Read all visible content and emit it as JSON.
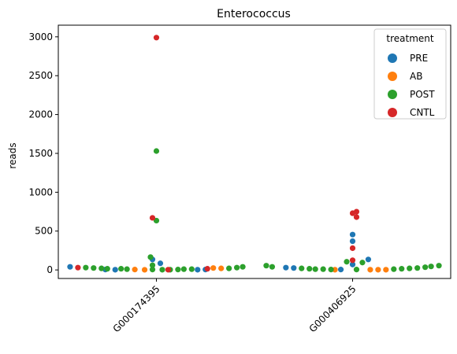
{
  "chart_data": {
    "type": "scatter",
    "subtype": "swarm",
    "title": "Enterococcus",
    "xlabel": "",
    "ylabel": "reads",
    "categories": [
      "G000174395",
      "G000406925"
    ],
    "ylim": [
      -110,
      3150
    ],
    "yticks": [
      0,
      500,
      1000,
      1500,
      2000,
      2500,
      3000
    ],
    "grid": false,
    "legend": {
      "title": "treatment",
      "position": "top-right",
      "entries": [
        {
          "name": "PRE",
          "color": "#1f77b4"
        },
        {
          "name": "AB",
          "color": "#ff7f0e"
        },
        {
          "name": "POST",
          "color": "#2ca02c"
        },
        {
          "name": "CNTL",
          "color": "#d62728"
        }
      ]
    },
    "series": [
      {
        "name": "PRE",
        "color": "#1f77b4",
        "points": [
          {
            "category": "G000174395",
            "offset": -0.44,
            "value": 40
          },
          {
            "category": "G000174395",
            "offset": -0.26,
            "value": 5
          },
          {
            "category": "G000174395",
            "offset": -0.21,
            "value": 3
          },
          {
            "category": "G000174395",
            "offset": -0.02,
            "value": 135
          },
          {
            "category": "G000174395",
            "offset": 0.02,
            "value": 85
          },
          {
            "category": "G000174395",
            "offset": 0.21,
            "value": 3
          },
          {
            "category": "G000174395",
            "offset": 0.25,
            "value": 5
          },
          {
            "category": "G000406925",
            "offset": -0.34,
            "value": 30
          },
          {
            "category": "G000406925",
            "offset": -0.3,
            "value": 25
          },
          {
            "category": "G000406925",
            "offset": -0.06,
            "value": 5
          },
          {
            "category": "G000406925",
            "offset": 0.0,
            "value": 455
          },
          {
            "category": "G000406925",
            "offset": 0.0,
            "value": 370
          },
          {
            "category": "G000406925",
            "offset": 0.0,
            "value": 70
          },
          {
            "category": "G000406925",
            "offset": 0.08,
            "value": 135
          }
        ]
      },
      {
        "name": "AB",
        "color": "#ff7f0e",
        "points": [
          {
            "category": "G000174395",
            "offset": -0.11,
            "value": 5
          },
          {
            "category": "G000174395",
            "offset": -0.06,
            "value": 2
          },
          {
            "category": "G000174395",
            "offset": 0.29,
            "value": 25
          },
          {
            "category": "G000174395",
            "offset": 0.33,
            "value": 20
          },
          {
            "category": "G000406925",
            "offset": -0.09,
            "value": 3
          },
          {
            "category": "G000406925",
            "offset": 0.09,
            "value": 3
          },
          {
            "category": "G000406925",
            "offset": 0.13,
            "value": 3
          },
          {
            "category": "G000406925",
            "offset": 0.17,
            "value": 3
          }
        ]
      },
      {
        "name": "POST",
        "color": "#2ca02c",
        "points": [
          {
            "category": "G000174395",
            "offset": 0.0,
            "value": 1530
          },
          {
            "category": "G000174395",
            "offset": 0.0,
            "value": 635
          },
          {
            "category": "G000174395",
            "offset": -0.03,
            "value": 165
          },
          {
            "category": "G000174395",
            "offset": -0.02,
            "value": 60
          },
          {
            "category": "G000174395",
            "offset": -0.36,
            "value": 30
          },
          {
            "category": "G000174395",
            "offset": -0.32,
            "value": 25
          },
          {
            "category": "G000174395",
            "offset": -0.28,
            "value": 20
          },
          {
            "category": "G000174395",
            "offset": -0.25,
            "value": 15
          },
          {
            "category": "G000174395",
            "offset": -0.18,
            "value": 15
          },
          {
            "category": "G000174395",
            "offset": -0.15,
            "value": 10
          },
          {
            "category": "G000174395",
            "offset": -0.02,
            "value": 5
          },
          {
            "category": "G000174395",
            "offset": 0.03,
            "value": 3
          },
          {
            "category": "G000174395",
            "offset": 0.07,
            "value": 3
          },
          {
            "category": "G000174395",
            "offset": 0.11,
            "value": 5
          },
          {
            "category": "G000174395",
            "offset": 0.14,
            "value": 10
          },
          {
            "category": "G000174395",
            "offset": 0.18,
            "value": 10
          },
          {
            "category": "G000174395",
            "offset": 0.37,
            "value": 20
          },
          {
            "category": "G000174395",
            "offset": 0.41,
            "value": 30
          },
          {
            "category": "G000174395",
            "offset": 0.44,
            "value": 40
          },
          {
            "category": "G000406925",
            "offset": -0.44,
            "value": 55
          },
          {
            "category": "G000406925",
            "offset": -0.41,
            "value": 40
          },
          {
            "category": "G000406925",
            "offset": -0.26,
            "value": 20
          },
          {
            "category": "G000406925",
            "offset": -0.22,
            "value": 15
          },
          {
            "category": "G000406925",
            "offset": -0.19,
            "value": 10
          },
          {
            "category": "G000406925",
            "offset": -0.15,
            "value": 10
          },
          {
            "category": "G000406925",
            "offset": -0.11,
            "value": 5
          },
          {
            "category": "G000406925",
            "offset": -0.03,
            "value": 105
          },
          {
            "category": "G000406925",
            "offset": 0.02,
            "value": 5
          },
          {
            "category": "G000406925",
            "offset": 0.05,
            "value": 95
          },
          {
            "category": "G000406925",
            "offset": 0.21,
            "value": 10
          },
          {
            "category": "G000406925",
            "offset": 0.25,
            "value": 15
          },
          {
            "category": "G000406925",
            "offset": 0.29,
            "value": 20
          },
          {
            "category": "G000406925",
            "offset": 0.33,
            "value": 25
          },
          {
            "category": "G000406925",
            "offset": 0.37,
            "value": 35
          },
          {
            "category": "G000406925",
            "offset": 0.4,
            "value": 45
          },
          {
            "category": "G000406925",
            "offset": 0.44,
            "value": 55
          }
        ]
      },
      {
        "name": "CNTL",
        "color": "#d62728",
        "points": [
          {
            "category": "G000174395",
            "offset": 0.0,
            "value": 2990
          },
          {
            "category": "G000174395",
            "offset": -0.02,
            "value": 670
          },
          {
            "category": "G000174395",
            "offset": -0.4,
            "value": 30
          },
          {
            "category": "G000174395",
            "offset": 0.06,
            "value": 3
          },
          {
            "category": "G000174395",
            "offset": 0.26,
            "value": 15
          },
          {
            "category": "G000406925",
            "offset": 0.0,
            "value": 730
          },
          {
            "category": "G000406925",
            "offset": 0.02,
            "value": 680
          },
          {
            "category": "G000406925",
            "offset": 0.02,
            "value": 750
          },
          {
            "category": "G000406925",
            "offset": 0.0,
            "value": 280
          },
          {
            "category": "G000406925",
            "offset": 0.0,
            "value": 125
          }
        ]
      }
    ]
  }
}
